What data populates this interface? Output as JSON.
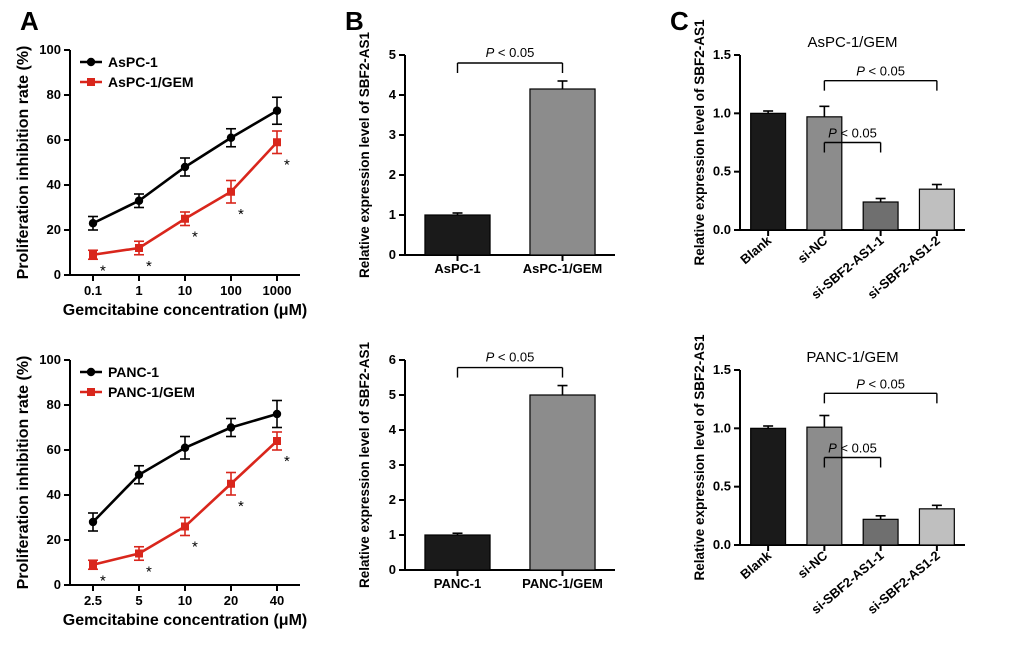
{
  "panelLabels": {
    "A": "A",
    "B": "B",
    "C": "C"
  },
  "colors": {
    "black": "#000000",
    "seriesBlack": "#000000",
    "seriesRed": "#d9261c",
    "barDark": "#1a1a1a",
    "barMed": "#8c8c8c",
    "barMed2": "#6f6f6f",
    "barLight": "#bfbfbf",
    "axis": "#000000",
    "background": "#ffffff"
  },
  "fonts": {
    "panelLabel": 26,
    "axisLabel": 16,
    "tickLabel": 13,
    "legend": 14,
    "title": 15,
    "pval": 13
  },
  "lineStyle": {
    "plotLineWidth": 2.6,
    "markerRadius": 4.2,
    "markerSquareHalf": 4.0,
    "axisLineWidth": 2.0,
    "errorCapHalf": 5,
    "errorBarWidth": 1.6,
    "barStrokeWidth": 1.2,
    "bracketWidth": 1.4
  },
  "panelA_top": {
    "ylabel": "Proliferation inhibition rate (%)",
    "xlabel": "Gemcitabine concentration (μM)",
    "ylim": [
      0,
      100
    ],
    "ytick_step": 20,
    "x_ticks": [
      "0.1",
      "1",
      "10",
      "100",
      "1000"
    ],
    "legend": [
      "AsPC-1",
      "AsPC-1/GEM"
    ],
    "series": [
      {
        "key": "black",
        "marker": "circle",
        "y": [
          23,
          33,
          48,
          61,
          73
        ],
        "err": [
          3,
          3,
          4,
          4,
          6
        ]
      },
      {
        "key": "red",
        "marker": "square",
        "y": [
          9,
          12,
          25,
          37,
          59
        ],
        "err": [
          2,
          3,
          3,
          5,
          5
        ],
        "sig": [
          true,
          true,
          true,
          true,
          true
        ]
      }
    ]
  },
  "panelA_bottom": {
    "ylabel": "Proliferation inhibition rate (%)",
    "xlabel": "Gemcitabine concentration (μM)",
    "ylim": [
      0,
      100
    ],
    "ytick_step": 20,
    "x_ticks": [
      "2.5",
      "5",
      "10",
      "20",
      "40"
    ],
    "legend": [
      "PANC-1",
      "PANC-1/GEM"
    ],
    "series": [
      {
        "key": "black",
        "marker": "circle",
        "y": [
          28,
          49,
          61,
          70,
          76
        ],
        "err": [
          4,
          4,
          5,
          4,
          6
        ]
      },
      {
        "key": "red",
        "marker": "square",
        "y": [
          9,
          14,
          26,
          45,
          64
        ],
        "err": [
          2,
          3,
          4,
          5,
          4
        ],
        "sig": [
          true,
          true,
          true,
          true,
          true
        ]
      }
    ]
  },
  "panelB_top": {
    "ylabel": "Relative expression level of SBF2-AS1",
    "ylim": [
      0,
      5
    ],
    "ytick_step": 1,
    "categories": [
      "AsPC-1",
      "AsPC-1/GEM"
    ],
    "values": [
      1.0,
      4.15
    ],
    "err": [
      0.05,
      0.2
    ],
    "bar_colors": [
      "barDark",
      "barMed"
    ],
    "pval": "P < 0.05"
  },
  "panelB_bottom": {
    "ylabel": "Relative expression level of SBF2-AS1",
    "ylim": [
      0,
      6
    ],
    "ytick_step": 1,
    "categories": [
      "PANC-1",
      "PANC-1/GEM"
    ],
    "values": [
      1.0,
      5.0
    ],
    "err": [
      0.05,
      0.27
    ],
    "bar_colors": [
      "barDark",
      "barMed"
    ],
    "pval": "P < 0.05"
  },
  "panelC_top": {
    "title": "AsPC-1/GEM",
    "ylabel": "Relative expression level of SBF2-AS1",
    "ylim": [
      0.0,
      1.5
    ],
    "ytick_step": 0.5,
    "categories": [
      "Blank",
      "si-NC",
      "si-SBF2-AS1-1",
      "si-SBF2-AS1-2"
    ],
    "values": [
      1.0,
      0.97,
      0.24,
      0.35
    ],
    "err": [
      0.02,
      0.09,
      0.03,
      0.04
    ],
    "bar_colors": [
      "barDark",
      "barMed",
      "barMed2",
      "barLight"
    ],
    "pvals": [
      {
        "from": 1,
        "to": 2,
        "label": "P < 0.05",
        "y": 0.75
      },
      {
        "from": 1,
        "to": 3,
        "label": "P < 0.05",
        "y": 1.28
      }
    ]
  },
  "panelC_bottom": {
    "title": "PANC-1/GEM",
    "ylabel": "Relative expression level of SBF2-AS1",
    "ylim": [
      0.0,
      1.5
    ],
    "ytick_step": 0.5,
    "categories": [
      "Blank",
      "si-NC",
      "si-SBF2-AS1-1",
      "si-SBF2-AS1-2"
    ],
    "values": [
      1.0,
      1.01,
      0.22,
      0.31
    ],
    "err": [
      0.02,
      0.1,
      0.03,
      0.03
    ],
    "bar_colors": [
      "barDark",
      "barMed",
      "barMed2",
      "barLight"
    ],
    "pvals": [
      {
        "from": 1,
        "to": 2,
        "label": "P < 0.05",
        "y": 0.75
      },
      {
        "from": 1,
        "to": 3,
        "label": "P < 0.05",
        "y": 1.3
      }
    ]
  }
}
